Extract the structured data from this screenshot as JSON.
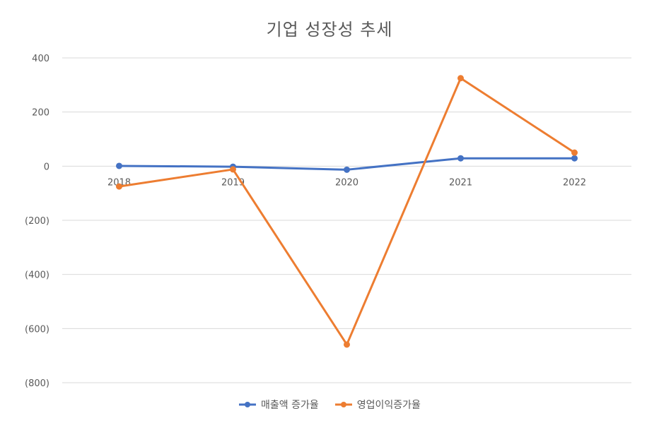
{
  "chart_data": {
    "type": "line",
    "title": "기업 성장성 추세",
    "categories": [
      "2018",
      "2019",
      "2020",
      "2021",
      "2022"
    ],
    "ylim": [
      -800,
      400
    ],
    "yticks": [
      400,
      200,
      0,
      -200,
      -400,
      -600,
      -800
    ],
    "ytick_labels": [
      "400",
      "200",
      "0",
      "(200)",
      "(400)",
      "(600)",
      "(800)"
    ],
    "grid": true,
    "legend": "bottom",
    "series": [
      {
        "name": "매출액 증가율",
        "color": "#4472C4",
        "values": [
          1,
          -2,
          -13,
          29,
          29
        ]
      },
      {
        "name": "영업이익증가율",
        "color": "#ED7D31",
        "values": [
          -75,
          -12,
          -659,
          325,
          50
        ]
      }
    ]
  }
}
